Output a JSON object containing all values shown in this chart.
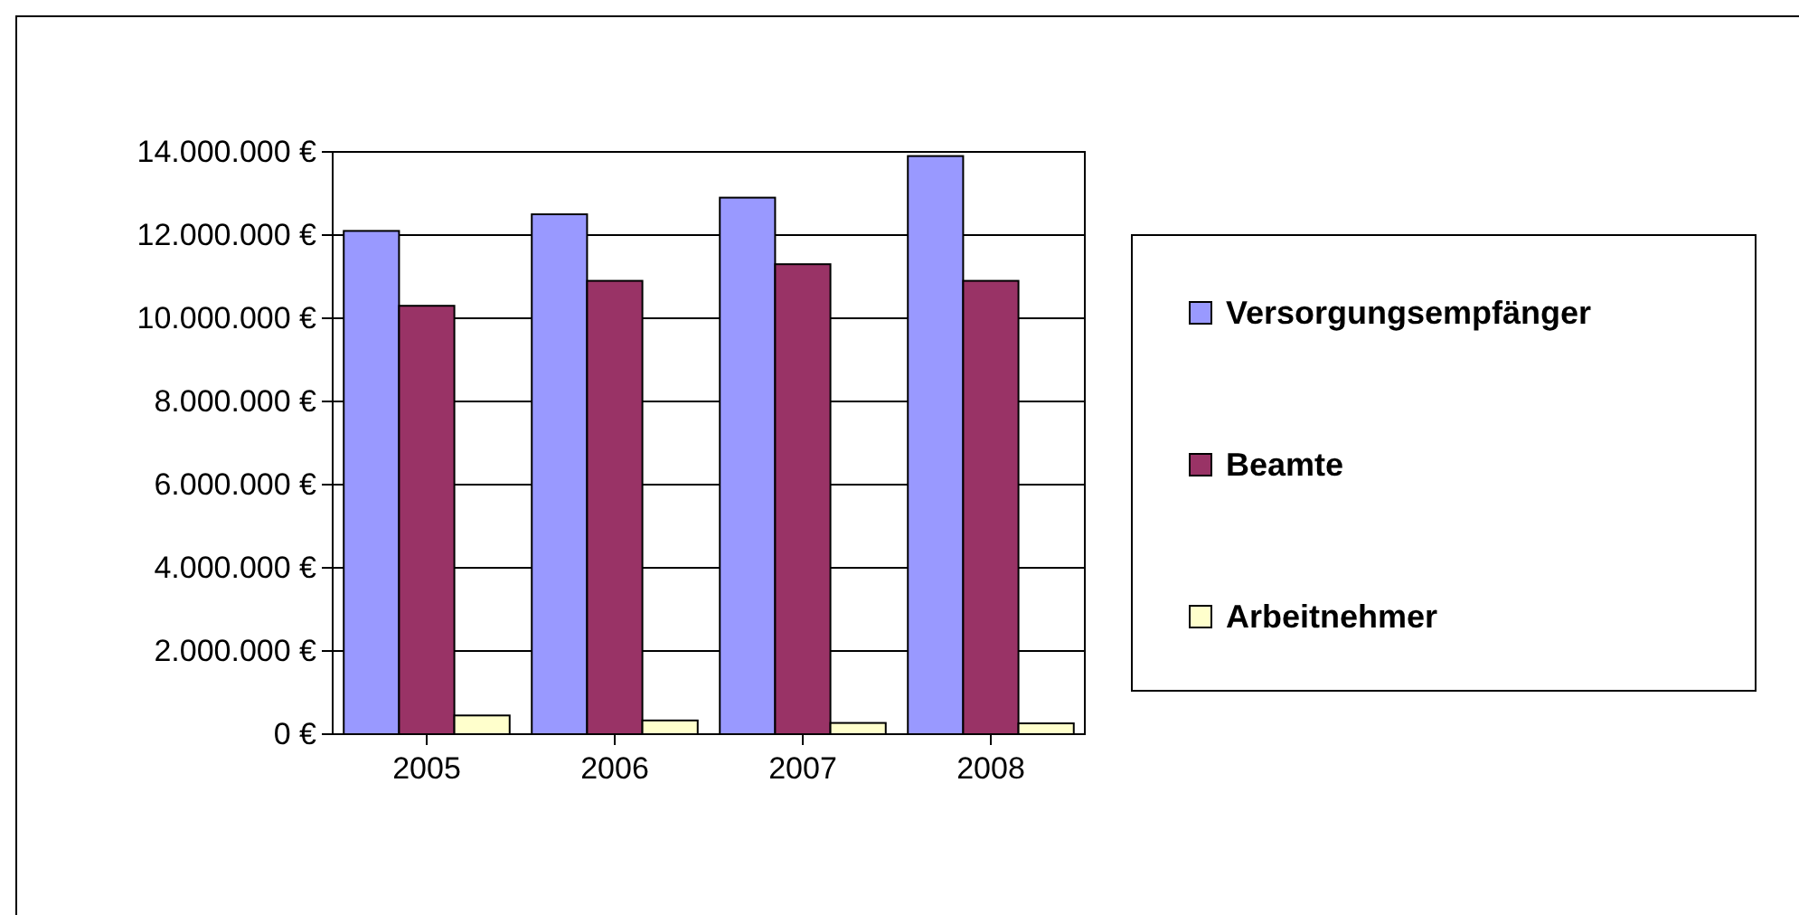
{
  "chart_data": {
    "type": "bar",
    "categories": [
      "2005",
      "2006",
      "2007",
      "2008"
    ],
    "series": [
      {
        "name": "Versorgungsempfänger",
        "color": "#9999ff",
        "values": [
          12100000,
          12500000,
          12900000,
          13900000
        ]
      },
      {
        "name": "Beamte",
        "color": "#993366",
        "values": [
          10300000,
          10900000,
          11300000,
          10900000
        ]
      },
      {
        "name": "Arbeitnehmer",
        "color": "#ffffcc",
        "values": [
          450000,
          330000,
          270000,
          260000
        ]
      }
    ],
    "ylim": [
      0,
      14000000
    ],
    "yticks": [
      {
        "value": 0,
        "label": "0 €"
      },
      {
        "value": 2000000,
        "label": "2.000.000 €"
      },
      {
        "value": 4000000,
        "label": "4.000.000 €"
      },
      {
        "value": 6000000,
        "label": "6.000.000 €"
      },
      {
        "value": 8000000,
        "label": "8.000.000 €"
      },
      {
        "value": 10000000,
        "label": "10.000.000 €"
      },
      {
        "value": 12000000,
        "label": "12.000.000 €"
      },
      {
        "value": 14000000,
        "label": "14.000.000 €"
      }
    ],
    "grid": "y",
    "legend": "right"
  }
}
